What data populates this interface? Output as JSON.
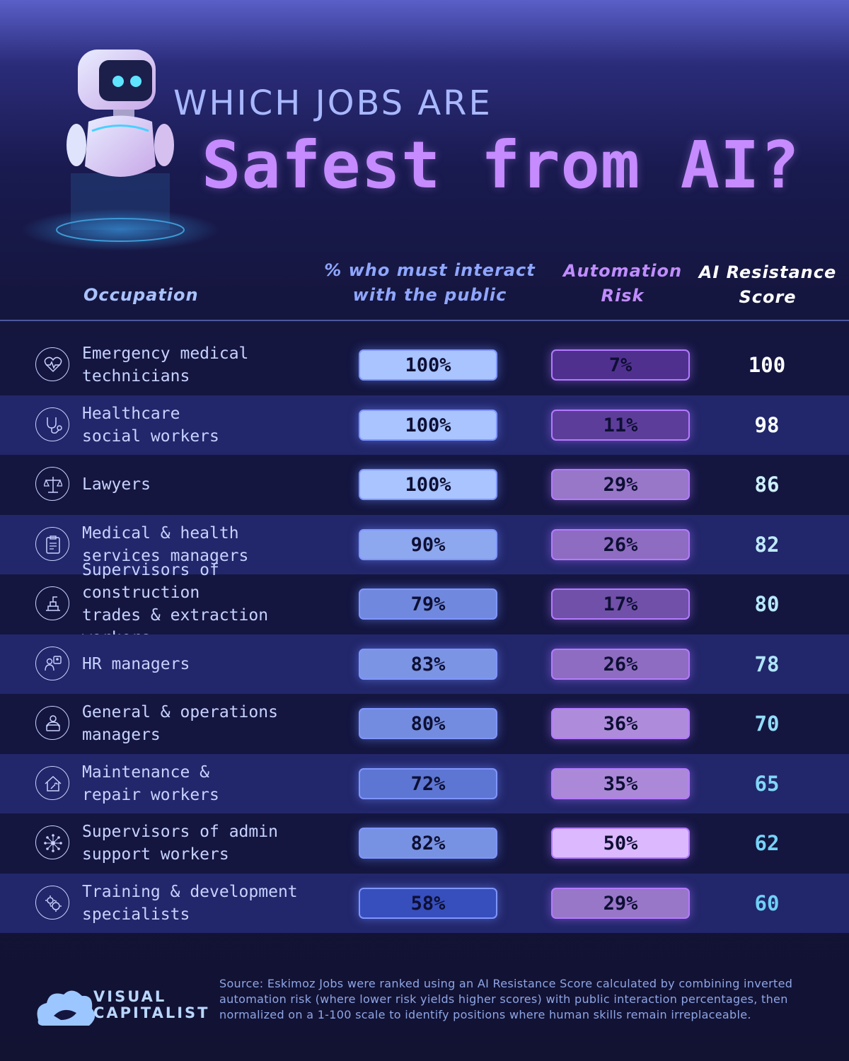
{
  "title": {
    "line1": "WHICH JOBS ARE",
    "line2": "Safest from AI?"
  },
  "headers": {
    "occupation": "Occupation",
    "public": "% who must interact\nwith the public",
    "automation": "Automation\nRisk",
    "score": "AI Resistance\nScore"
  },
  "rows": [
    {
      "occupation": "Emergency medical\ntechnicians",
      "icon": "heartbeat-icon",
      "public": "100%",
      "automation": "7%",
      "score": "100"
    },
    {
      "occupation": "Healthcare\nsocial workers",
      "icon": "stethoscope-icon",
      "public": "100%",
      "automation": "11%",
      "score": "98"
    },
    {
      "occupation": "Lawyers",
      "icon": "scales-icon",
      "public": "100%",
      "automation": "29%",
      "score": "86"
    },
    {
      "occupation": "Medical & health\nservices managers",
      "icon": "clipboard-icon",
      "public": "90%",
      "automation": "26%",
      "score": "82"
    },
    {
      "occupation": "Supervisors of construction\ntrades & extraction workers",
      "icon": "construction-icon",
      "public": "79%",
      "automation": "17%",
      "score": "80"
    },
    {
      "occupation": "HR managers",
      "icon": "hr-icon",
      "public": "83%",
      "automation": "26%",
      "score": "78"
    },
    {
      "occupation": "General & operations\nmanagers",
      "icon": "manager-laptop-icon",
      "public": "80%",
      "automation": "36%",
      "score": "70"
    },
    {
      "occupation": "Maintenance &\nrepair workers",
      "icon": "house-repair-icon",
      "public": "72%",
      "automation": "35%",
      "score": "65"
    },
    {
      "occupation": "Supervisors of admin\nsupport workers",
      "icon": "network-icon",
      "public": "82%",
      "automation": "50%",
      "score": "62"
    },
    {
      "occupation": "Training & development\nspecialists",
      "icon": "gears-head-icon",
      "public": "58%",
      "automation": "29%",
      "score": "60"
    }
  ],
  "chart_data": {
    "type": "table",
    "title": "WHICH JOBS ARE Safest from AI?",
    "columns": [
      "Occupation",
      "% who must interact with the public",
      "Automation Risk",
      "AI Resistance Score"
    ],
    "categories": [
      "Emergency medical technicians",
      "Healthcare social workers",
      "Lawyers",
      "Medical & health services managers",
      "Supervisors of construction trades & extraction workers",
      "HR managers",
      "General & operations managers",
      "Maintenance & repair workers",
      "Supervisors of admin support workers",
      "Training & development specialists"
    ],
    "series": [
      {
        "name": "% who must interact with the public",
        "values": [
          100,
          100,
          100,
          90,
          79,
          83,
          80,
          72,
          82,
          58
        ]
      },
      {
        "name": "Automation Risk",
        "values": [
          7,
          11,
          29,
          26,
          17,
          26,
          36,
          35,
          50,
          29
        ]
      },
      {
        "name": "AI Resistance Score",
        "values": [
          100,
          98,
          86,
          82,
          80,
          78,
          70,
          65,
          62,
          60
        ]
      }
    ]
  },
  "colors": {
    "public_high": "#a9c4ff",
    "public_low": "#2f46b8",
    "auto_low": "#4a2a8a",
    "auto_high": "#dcb8ff",
    "score_high": "#ffffff",
    "score_low": "#6fd0f5"
  },
  "logo": {
    "line1": "VISUAL",
    "line2": "CAPITALIST"
  },
  "source": "Source: Eskimoz Jobs were ranked using an AI Resistance Score calculated by combining inverted automation risk (where lower risk yields higher scores) with public interaction percentages, then normalized on a 1-100 scale to identify positions where human skills remain irreplaceable."
}
